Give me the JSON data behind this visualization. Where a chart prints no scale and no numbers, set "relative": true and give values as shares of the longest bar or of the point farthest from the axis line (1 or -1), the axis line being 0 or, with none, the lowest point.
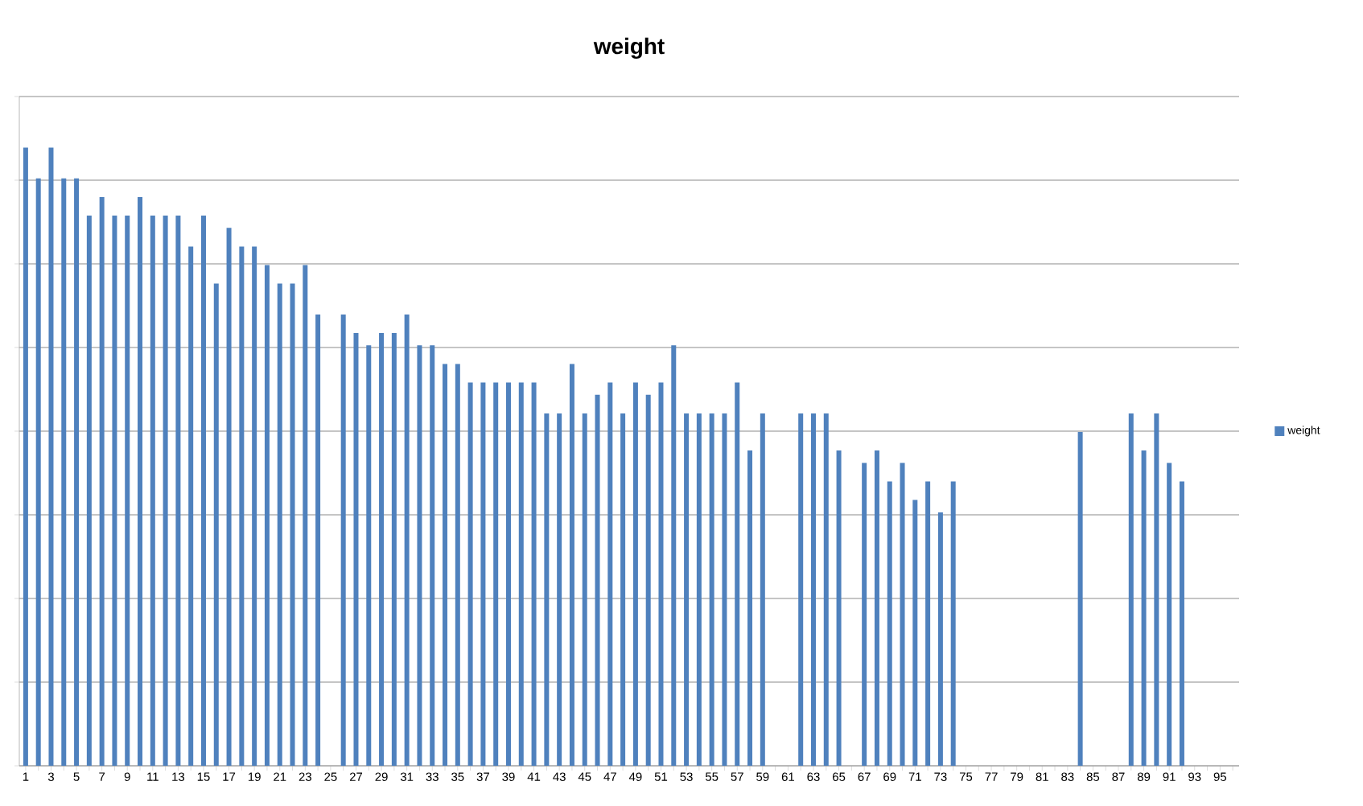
{
  "chart_data": {
    "type": "bar",
    "title": "weight",
    "relative": true,
    "grid": "y",
    "legend": "right",
    "categories": [
      "1",
      null,
      "3",
      null,
      "5",
      null,
      "7",
      null,
      "9",
      null,
      "11",
      null,
      "13",
      null,
      "15",
      null,
      "17",
      null,
      "19",
      null,
      "21",
      null,
      "23",
      null,
      "25",
      null,
      "27",
      null,
      "29",
      null,
      "31",
      null,
      "33",
      null,
      "35",
      null,
      "37",
      null,
      "39",
      null,
      "41",
      null,
      "43",
      null,
      "45",
      null,
      "47",
      null,
      "49",
      null,
      "51",
      null,
      "53",
      null,
      "55",
      null,
      "57",
      null,
      "59",
      null,
      "61",
      null,
      "63",
      null,
      "65",
      null,
      "67",
      null,
      "69",
      null,
      "71",
      null,
      "73",
      null,
      "75",
      null,
      "77",
      null,
      "79",
      null,
      "81",
      null,
      "83",
      null,
      "85",
      null,
      "87",
      null,
      "89",
      null,
      "91",
      null,
      "93",
      null,
      "95",
      null
    ],
    "series": [
      {
        "name": "weight",
        "color": "#4f81bd",
        "values": [
          1,
          0.95,
          1,
          0.95,
          0.95,
          0.89,
          0.92,
          0.89,
          0.89,
          0.92,
          0.89,
          0.89,
          0.89,
          0.84,
          0.89,
          0.78,
          0.87,
          0.84,
          0.84,
          0.81,
          0.78,
          0.78,
          0.81,
          0.73,
          null,
          0.73,
          0.7,
          0.68,
          0.7,
          0.7,
          0.73,
          0.68,
          0.68,
          0.65,
          0.65,
          0.62,
          0.62,
          0.62,
          0.62,
          0.62,
          0.62,
          0.57,
          0.57,
          0.65,
          0.57,
          0.6,
          0.62,
          0.57,
          0.62,
          0.6,
          0.62,
          0.68,
          0.57,
          0.57,
          0.57,
          0.57,
          0.62,
          0.51,
          0.57,
          null,
          null,
          0.57,
          0.57,
          0.57,
          0.51,
          null,
          0.49,
          0.51,
          0.46,
          0.49,
          0.43,
          0.46,
          0.41,
          0.46,
          null,
          null,
          null,
          null,
          null,
          null,
          null,
          null,
          null,
          0.54,
          null,
          null,
          null,
          0.57,
          0.51,
          0.57,
          0.49,
          0.46,
          null,
          null,
          null,
          null
        ]
      }
    ]
  }
}
